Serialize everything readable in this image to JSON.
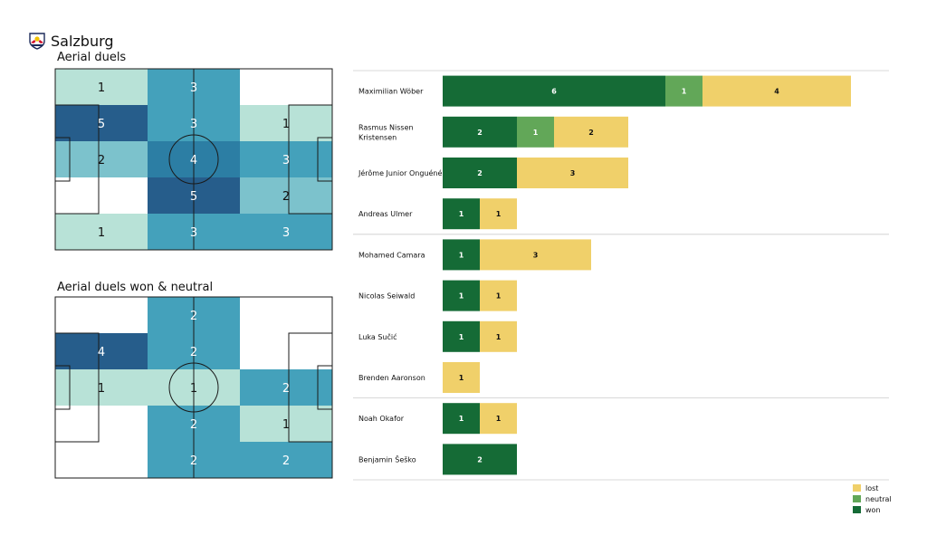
{
  "team": {
    "name": "Salzburg",
    "logo_icon": "red-bull-salzburg-crest-icon"
  },
  "colors": {
    "won": "#156b36",
    "neutral": "#62a758",
    "lost": "#f0d06a",
    "separator": "#cccccc",
    "heat": [
      "#ffffff",
      "#b8e2d7",
      "#7cc2cc",
      "#44a1bb",
      "#2c7ea4",
      "#265d8b"
    ]
  },
  "legend": [
    {
      "key": "lost",
      "label": "lost"
    },
    {
      "key": "neutral",
      "label": "neutral"
    },
    {
      "key": "won",
      "label": "won"
    }
  ],
  "chart_data": [
    {
      "type": "heatmap",
      "title": "Aerial duels",
      "rows": 5,
      "cols": 3,
      "values": [
        [
          1,
          3,
          0
        ],
        [
          5,
          3,
          1
        ],
        [
          2,
          4,
          3
        ],
        [
          0,
          5,
          2
        ],
        [
          1,
          3,
          3
        ]
      ],
      "max": 5
    },
    {
      "type": "heatmap",
      "title": "Aerial duels won & neutral",
      "rows": 5,
      "cols": 3,
      "values": [
        [
          0,
          2,
          0
        ],
        [
          4,
          2,
          0
        ],
        [
          1,
          1,
          2
        ],
        [
          0,
          2,
          1
        ],
        [
          0,
          2,
          2
        ]
      ],
      "max": 4
    },
    {
      "type": "bar",
      "stacked": true,
      "orientation": "horizontal",
      "series_order": [
        "won",
        "neutral",
        "lost"
      ],
      "groups": [
        [
          0,
          1,
          2,
          3
        ],
        [
          4,
          5,
          6,
          7
        ],
        [
          8,
          9
        ]
      ],
      "players": [
        {
          "name": [
            "Maximilian Wöber"
          ],
          "won": 6,
          "neutral": 1,
          "lost": 4
        },
        {
          "name": [
            "Rasmus Nissen",
            "Kristensen"
          ],
          "won": 2,
          "neutral": 1,
          "lost": 2
        },
        {
          "name": [
            "Jérôme Junior Onguéné"
          ],
          "won": 2,
          "neutral": 0,
          "lost": 3
        },
        {
          "name": [
            "Andreas Ulmer"
          ],
          "won": 1,
          "neutral": 0,
          "lost": 1
        },
        {
          "name": [
            "Mohamed Camara"
          ],
          "won": 1,
          "neutral": 0,
          "lost": 3
        },
        {
          "name": [
            "Nicolas Seiwald"
          ],
          "won": 1,
          "neutral": 0,
          "lost": 1
        },
        {
          "name": [
            "Luka Sučić"
          ],
          "won": 1,
          "neutral": 0,
          "lost": 1
        },
        {
          "name": [
            "Brenden  Aaronson"
          ],
          "won": 0,
          "neutral": 0,
          "lost": 1
        },
        {
          "name": [
            "Noah Okafor"
          ],
          "won": 1,
          "neutral": 0,
          "lost": 1
        },
        {
          "name": [
            "Benjamin Šeško"
          ],
          "won": 2,
          "neutral": 0,
          "lost": 0
        }
      ]
    }
  ]
}
